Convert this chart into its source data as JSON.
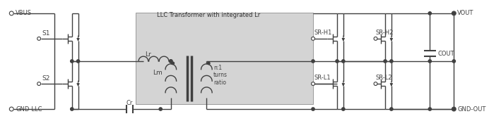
{
  "bg_color": "#ffffff",
  "box_color": "#d4d4d4",
  "line_color": "#404040",
  "text_color": "#404040",
  "box_title": "LLC Transformer with integrated Lr",
  "labels": {
    "vbus": "VBUS",
    "gnd_llc": "GND-LLC",
    "vout": "VOUT",
    "gnd_out": "GND-OUT",
    "s1": "S1",
    "s2": "S2",
    "cr": "Cr",
    "lr": "Lr",
    "lm": "Lm",
    "turns": "n:1\nturns\nratio",
    "sr_h1": "SR-H1",
    "sr_h2": "SR-H2",
    "sr_l1": "SR-L1",
    "sr_l2": "SR-L2",
    "cout": "COUT"
  }
}
